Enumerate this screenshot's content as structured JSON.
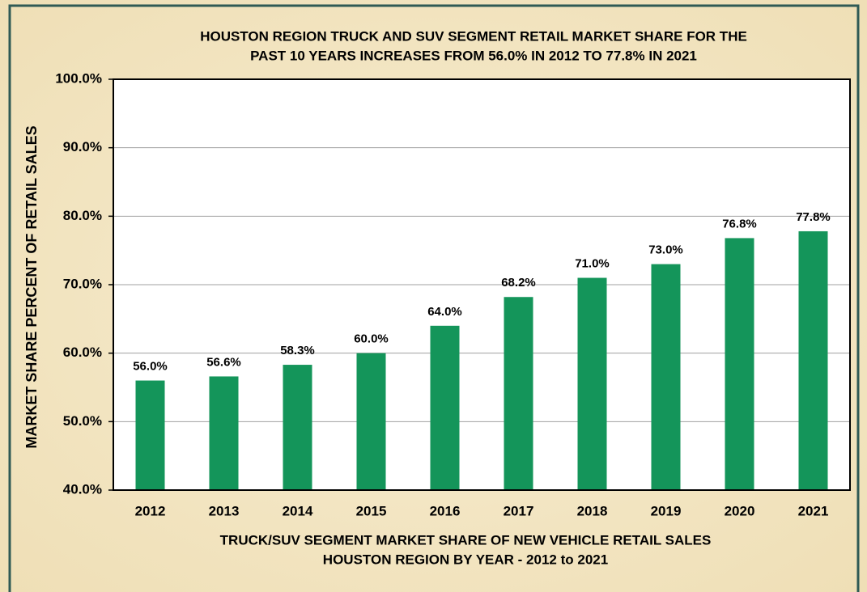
{
  "chart_data": {
    "type": "bar",
    "title": [
      "HOUSTON REGION TRUCK AND SUV SEGMENT RETAIL MARKET SHARE FOR THE",
      "PAST 10 YEARS INCREASES FROM 56.0% IN 2012 TO 77.8% IN 2021"
    ],
    "x_label": [
      "TRUCK/SUV SEGMENT MARKET SHARE OF NEW VEHICLE RETAIL SALES",
      "HOUSTON REGION BY YEAR - 2012 to 2021"
    ],
    "y_label": "MARKET SHARE PERCENT OF RETAIL SALES",
    "categories": [
      "2012",
      "2013",
      "2014",
      "2015",
      "2016",
      "2017",
      "2018",
      "2019",
      "2020",
      "2021"
    ],
    "values": [
      56.0,
      56.6,
      58.3,
      60.0,
      64.0,
      68.2,
      71.0,
      73.0,
      76.8,
      77.8
    ],
    "value_labels": [
      "56.0%",
      "56.6%",
      "58.3%",
      "60.0%",
      "64.0%",
      "68.2%",
      "71.0%",
      "73.0%",
      "76.8%",
      "77.8%"
    ],
    "color": "#14955a",
    "ylim": [
      40,
      100
    ],
    "yticks": [
      {
        "value": 40,
        "label": "40.0%"
      },
      {
        "value": 50,
        "label": "50.0%"
      },
      {
        "value": 60,
        "label": "60.0%"
      },
      {
        "value": 70,
        "label": "70.0%"
      },
      {
        "value": 80,
        "label": "80.0%"
      },
      {
        "value": 90,
        "label": "90.0%"
      },
      {
        "value": 100,
        "label": "100.0%"
      }
    ],
    "grid": true
  }
}
